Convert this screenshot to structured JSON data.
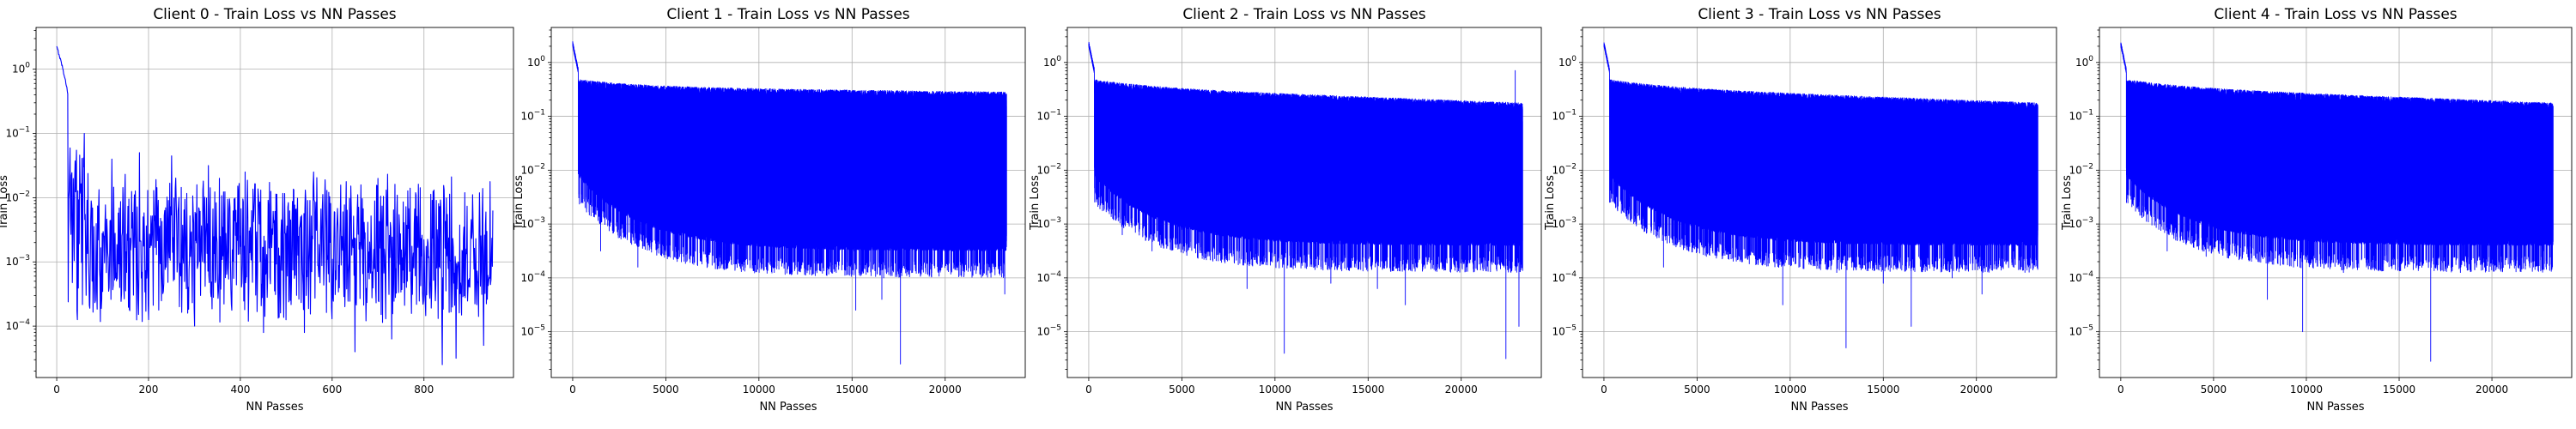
{
  "chart_data": [
    {
      "type": "line",
      "title": "Client 0 - Train Loss vs NN Passes",
      "xlabel": "NN Passes",
      "ylabel": "Train Loss",
      "xlim": [
        -45,
        995
      ],
      "xticks": [
        0,
        200,
        400,
        600,
        800
      ],
      "yscale": "log",
      "ylim_exp": [
        -4.8,
        0.65
      ],
      "yticks_exp": [
        -4,
        -3,
        -2,
        -1,
        0
      ],
      "grid": true,
      "color": "#0000ff",
      "series": [
        {
          "n_points": 950,
          "x_max": 950,
          "initial_value": 2.2,
          "plateau_at_x": 25,
          "noise_low_decade": -3.8,
          "noise_high_decade": -1.8,
          "min_value": 2.5e-05,
          "spikes": [
            [
              60,
              -1.0
            ],
            [
              120,
              -1.4
            ],
            [
              180,
              -1.3
            ],
            [
              250,
              -1.35
            ],
            [
              330,
              -1.5
            ],
            [
              410,
              -1.6
            ],
            [
              560,
              -1.6
            ],
            [
              700,
              -1.7
            ],
            [
              820,
              -1.9
            ]
          ],
          "dips": [
            [
              45,
              -3.9
            ],
            [
              200,
              -3.9
            ],
            [
              300,
              -4.0
            ],
            [
              450,
              -4.1
            ],
            [
              540,
              -4.1
            ],
            [
              650,
              -4.4
            ],
            [
              730,
              -4.2
            ],
            [
              840,
              -4.6
            ],
            [
              870,
              -4.5
            ],
            [
              930,
              -4.3
            ]
          ]
        }
      ]
    },
    {
      "type": "line",
      "title": "Client 1 - Train Loss vs NN Passes",
      "xlabel": "NN Passes",
      "ylabel": "Train Loss",
      "xlim": [
        -1150,
        24300
      ],
      "xticks": [
        0,
        5000,
        10000,
        15000,
        20000
      ],
      "yscale": "log",
      "ylim_exp": [
        -5.85,
        0.65
      ],
      "yticks_exp": [
        -5,
        -4,
        -3,
        -2,
        -1,
        0
      ],
      "grid": true,
      "color": "#0000ff",
      "series": [
        {
          "n_points": 23400,
          "x_max": 23300,
          "initial_value": 2.2,
          "band_top_start": -0.3,
          "band_top_end": -0.4,
          "band_bottom_start": -2.0,
          "band_bottom_end": -3.5,
          "min_value": 2.5e-06,
          "dips": [
            [
              1500,
              -3.5
            ],
            [
              3500,
              -3.8
            ],
            [
              8000,
              -3.5
            ],
            [
              10000,
              -3.5
            ],
            [
              12700,
              -3.1
            ],
            [
              13300,
              -3.7
            ],
            [
              15100,
              -3.5
            ],
            [
              15200,
              -4.6
            ],
            [
              16600,
              -4.4
            ],
            [
              16700,
              -4.0
            ],
            [
              17600,
              -5.6
            ],
            [
              20400,
              -3.5
            ],
            [
              23200,
              -4.3
            ]
          ]
        }
      ]
    },
    {
      "type": "line",
      "title": "Client 2 - Train Loss vs NN Passes",
      "xlabel": "NN Passes",
      "ylabel": "Train Loss",
      "xlim": [
        -1150,
        24300
      ],
      "xticks": [
        0,
        5000,
        10000,
        15000,
        20000
      ],
      "yscale": "log",
      "ylim_exp": [
        -5.85,
        0.65
      ],
      "yticks_exp": [
        -5,
        -4,
        -3,
        -2,
        -1,
        0
      ],
      "grid": true,
      "color": "#0000ff",
      "series": [
        {
          "n_points": 23400,
          "x_max": 23300,
          "initial_value": 2.2,
          "band_top_start": -0.3,
          "band_top_end": -0.6,
          "band_bottom_start": -2.0,
          "band_bottom_end": -3.4,
          "min_value": 2.9e-06,
          "spikes": [
            [
              22900,
              -0.15
            ]
          ],
          "dips": [
            [
              1800,
              -3.2
            ],
            [
              3400,
              -3.5
            ],
            [
              5000,
              -3.1
            ],
            [
              8500,
              -4.2
            ],
            [
              10500,
              -5.4
            ],
            [
              13000,
              -4.1
            ],
            [
              15500,
              -4.2
            ],
            [
              17000,
              -4.5
            ],
            [
              19800,
              -3.8
            ],
            [
              21500,
              -3.5
            ],
            [
              22400,
              -5.5
            ],
            [
              23100,
              -4.9
            ]
          ]
        }
      ]
    },
    {
      "type": "line",
      "title": "Client 3 - Train Loss vs NN Passes",
      "xlabel": "NN Passes",
      "ylabel": "Train Loss",
      "xlim": [
        -1150,
        24300
      ],
      "xticks": [
        0,
        5000,
        10000,
        15000,
        20000
      ],
      "yscale": "log",
      "ylim_exp": [
        -5.85,
        0.65
      ],
      "yticks_exp": [
        -5,
        -4,
        -3,
        -2,
        -1,
        0
      ],
      "grid": true,
      "color": "#0000ff",
      "series": [
        {
          "n_points": 23400,
          "x_max": 23300,
          "initial_value": 2.2,
          "band_top_start": -0.3,
          "band_top_end": -0.6,
          "band_bottom_start": -2.0,
          "band_bottom_end": -3.4,
          "min_value": 5e-06,
          "dips": [
            [
              3200,
              -3.8
            ],
            [
              5500,
              -3.6
            ],
            [
              9600,
              -4.5
            ],
            [
              12500,
              -3.9
            ],
            [
              13000,
              -5.3
            ],
            [
              15000,
              -4.1
            ],
            [
              16500,
              -4.9
            ],
            [
              18700,
              -4.0
            ],
            [
              20300,
              -4.3
            ],
            [
              22000,
              -3.5
            ]
          ]
        }
      ]
    },
    {
      "type": "line",
      "title": "Client 4 - Train Loss vs NN Passes",
      "xlabel": "NN Passes",
      "ylabel": "Train Loss",
      "xlim": [
        -1150,
        24300
      ],
      "xticks": [
        0,
        5000,
        10000,
        15000,
        20000
      ],
      "yscale": "log",
      "ylim_exp": [
        -5.85,
        0.65
      ],
      "yticks_exp": [
        -5,
        -4,
        -3,
        -2,
        -1,
        0
      ],
      "grid": true,
      "color": "#0000ff",
      "series": [
        {
          "n_points": 23400,
          "x_max": 23300,
          "initial_value": 2.2,
          "band_top_start": -0.3,
          "band_top_end": -0.6,
          "band_bottom_start": -2.0,
          "band_bottom_end": -3.4,
          "min_value": 3e-06,
          "dips": [
            [
              2500,
              -3.5
            ],
            [
              4600,
              -3.6
            ],
            [
              6200,
              -3.5
            ],
            [
              7900,
              -4.4
            ],
            [
              9800,
              -5.0
            ],
            [
              12000,
              -3.9
            ],
            [
              16700,
              -5.55
            ],
            [
              18300,
              -3.9
            ],
            [
              20000,
              -3.6
            ],
            [
              22800,
              -3.5
            ]
          ]
        }
      ]
    }
  ]
}
